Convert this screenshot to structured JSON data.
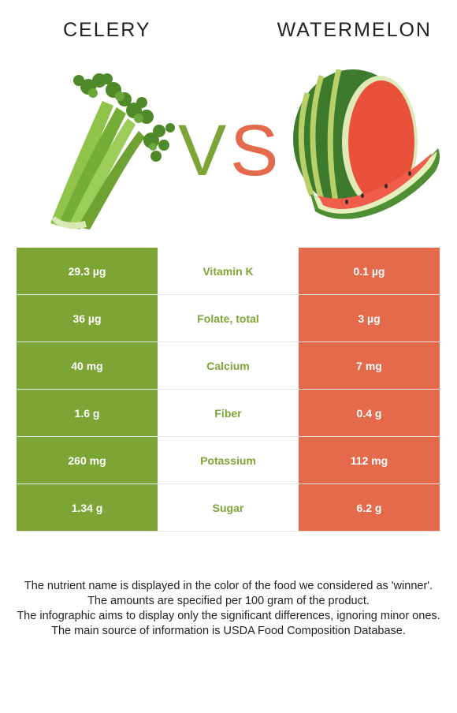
{
  "foods": {
    "left": {
      "name": "CELERY",
      "color": "#7da536",
      "image": "celery-icon"
    },
    "right": {
      "name": "WATERMELON",
      "color": "#e46a4b",
      "image": "watermelon-icon"
    }
  },
  "vs": {
    "v": "V",
    "s": "S",
    "v_color": "#7da536",
    "s_color": "#e46a4b"
  },
  "rows": [
    {
      "left": "29.3 µg",
      "nutrient": "Vitamin K",
      "right": "0.1 µg",
      "winner": "left"
    },
    {
      "left": "36 µg",
      "nutrient": "Folate, total",
      "right": "3 µg",
      "winner": "left"
    },
    {
      "left": "40 mg",
      "nutrient": "Calcium",
      "right": "7 mg",
      "winner": "left"
    },
    {
      "left": "1.6 g",
      "nutrient": "Fiber",
      "right": "0.4 g",
      "winner": "left"
    },
    {
      "left": "260 mg",
      "nutrient": "Potassium",
      "right": "112 mg",
      "winner": "left"
    },
    {
      "left": "1.34 g",
      "nutrient": "Sugar",
      "right": "6.2 g",
      "winner": "left"
    }
  ],
  "notes": [
    "The nutrient name is displayed in the color of the food we considered as 'winner'.",
    "The amounts are specified per 100 gram of the product.",
    "The infographic aims to display only the significant differences, ignoring minor ones.",
    "The main source of information is USDA Food Composition Database."
  ]
}
